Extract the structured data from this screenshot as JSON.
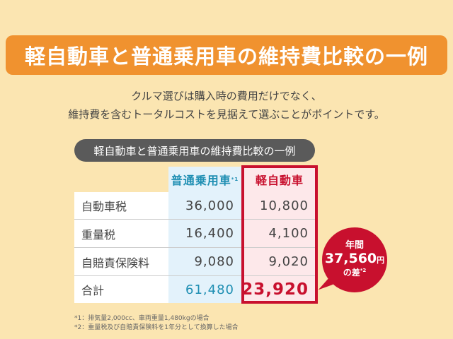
{
  "title": "軽自動車と普通乗用車の維持費比較の一例",
  "intro": [
    "クルマ選びは購入時の費用だけでなく、",
    "維持費を含むトータルコストを見据えて選ぶことがポイントです。"
  ],
  "table": {
    "caption": "軽自動車と普通乗用車の維持費比較の一例",
    "headers": [
      "",
      "普通乗用車",
      "軽自動車"
    ],
    "header_note": "*1",
    "rows": [
      {
        "label": "自動車税",
        "regular": "36,000",
        "kei": "10,800"
      },
      {
        "label": "重量税",
        "regular": "16,400",
        "kei": "4,100"
      },
      {
        "label": "自賠責保険料",
        "regular": "9,080",
        "kei": "9,020"
      },
      {
        "label": "合計",
        "regular": "61,480",
        "kei": "23,920"
      }
    ]
  },
  "bubble": {
    "line1": "年間",
    "amount": "37,560",
    "unit": "円",
    "line3": "の差",
    "note": "*2"
  },
  "footnotes": [
    "*1：排気量2,000cc、車両重量1,480kgの場合",
    "*2：重量税及び自賠責保険料を1年分として換算した場合"
  ],
  "colors": {
    "background": "#fbe5b1",
    "banner": "#f0922f",
    "regular": "#1f8fb3",
    "kei": "#c8102e"
  }
}
